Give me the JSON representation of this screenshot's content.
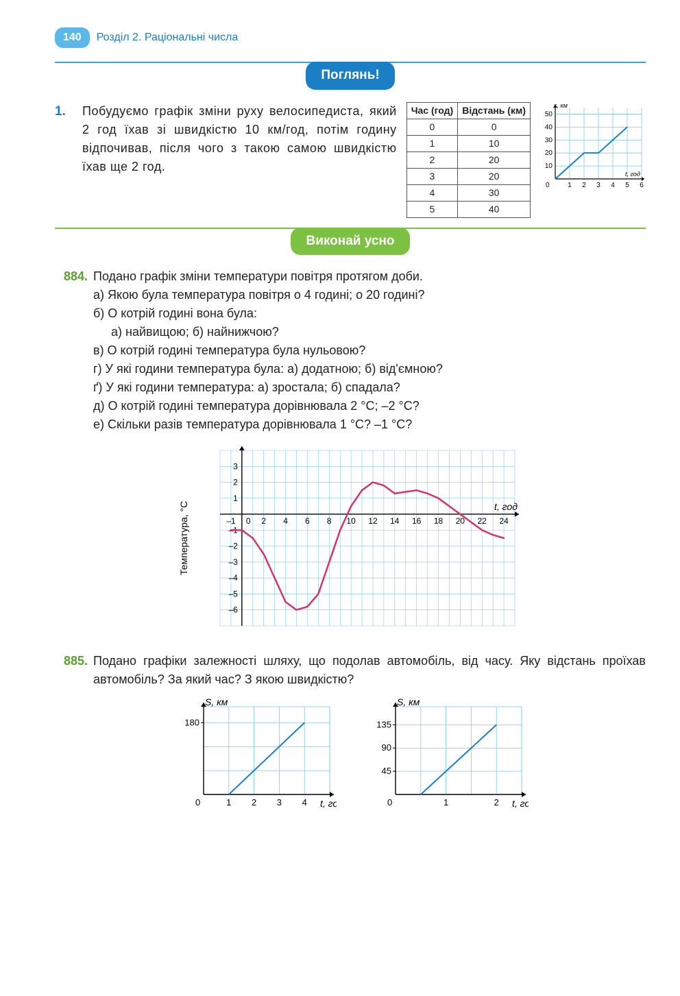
{
  "header": {
    "page_number": "140",
    "chapter": "Розділ 2. Раціональні числа"
  },
  "section_look": {
    "label": "Поглянь!"
  },
  "example1": {
    "num": "1.",
    "text": "Побудуємо графік зміни руху велосипедиста, який 2 год їхав зі швидкістю 10 км/год, потім годину відпочивав, після чого з такою самою швидкістю їхав ще 2 год.",
    "table": {
      "col1": "Час (год)",
      "col2": "Відстань (км)",
      "rows": [
        [
          "0",
          "0"
        ],
        [
          "1",
          "10"
        ],
        [
          "2",
          "20"
        ],
        [
          "3",
          "20"
        ],
        [
          "4",
          "30"
        ],
        [
          "5",
          "40"
        ]
      ]
    },
    "chart": {
      "type": "line",
      "ylabel": "s, км",
      "xlabel": "t, год",
      "yticks": [
        "10",
        "20",
        "30",
        "40",
        "50"
      ],
      "xticks": [
        "1",
        "2",
        "3",
        "4",
        "5",
        "6"
      ],
      "points": [
        [
          0,
          0
        ],
        [
          1,
          10
        ],
        [
          2,
          20
        ],
        [
          3,
          20
        ],
        [
          4,
          30
        ],
        [
          5,
          40
        ]
      ],
      "xlim": [
        0,
        6
      ],
      "ylim": [
        0,
        55
      ],
      "grid_color": "#7ec8e8",
      "line_color": "#1a7fc4",
      "line_width": 2,
      "bg": "#ffffff"
    }
  },
  "section_oral": {
    "label": "Виконай усно"
  },
  "p884": {
    "num": "884.",
    "intro": "Подано графік зміни температури повітря протягом доби.",
    "a": "а) Якою була температура повітря о 4 годині; о 20 годині?",
    "b": "б) О котрій годині вона була:",
    "b_sub": "а) найвищою; б) найнижчою?",
    "v": "в) О котрій годині температура була нульовою?",
    "g": "г) У які години температура була: а) додатною; б) від'ємною?",
    "gg": "ґ) У які години температура: а) зростала; б) спадала?",
    "d": "д) О котрій годині температура дорівнювала 2 °С; –2 °С?",
    "e": "е) Скільки разів температура дорівнювала 1 °С? –1 °С?",
    "chart": {
      "type": "line",
      "ylabel": "Температура, °С",
      "xlabel": "t, год",
      "xticks": [
        "–1",
        "0",
        "2",
        "4",
        "6",
        "8",
        "10",
        "12",
        "14",
        "16",
        "18",
        "20",
        "22",
        "24"
      ],
      "yticks_pos": [
        "1",
        "2",
        "3"
      ],
      "yticks_neg": [
        "–1",
        "–2",
        "–3",
        "–4",
        "–5",
        "–6"
      ],
      "points": [
        [
          -1,
          -1
        ],
        [
          0,
          -1
        ],
        [
          1,
          -1.5
        ],
        [
          2,
          -2.5
        ],
        [
          3,
          -4
        ],
        [
          4,
          -5.5
        ],
        [
          5,
          -6
        ],
        [
          6,
          -5.8
        ],
        [
          7,
          -5
        ],
        [
          8,
          -3
        ],
        [
          9,
          -1
        ],
        [
          10,
          0.5
        ],
        [
          11,
          1.5
        ],
        [
          12,
          2
        ],
        [
          13,
          1.8
        ],
        [
          14,
          1.3
        ],
        [
          15,
          1.4
        ],
        [
          16,
          1.5
        ],
        [
          17,
          1.3
        ],
        [
          18,
          1
        ],
        [
          19,
          0.5
        ],
        [
          20,
          0
        ],
        [
          21,
          -0.5
        ],
        [
          22,
          -1
        ],
        [
          23,
          -1.3
        ],
        [
          24,
          -1.5
        ]
      ],
      "xlim": [
        -2,
        25
      ],
      "ylim": [
        -7,
        4
      ],
      "grid_color": "#7ec8e8",
      "line_color": "#d6336c",
      "line_width": 2.5,
      "bg": "#ffffff"
    }
  },
  "p885": {
    "num": "885.",
    "text": "Подано графіки залежності шляху, що подолав автомобіль, від часу. Яку відстань проїхав автомобіль? За який час? З якою швидкістю?",
    "chart_a": {
      "type": "line",
      "ylabel": "S, км",
      "xlabel": "t, год",
      "xticks": [
        "1",
        "2",
        "3",
        "4"
      ],
      "yticks": [
        "180"
      ],
      "points": [
        [
          1,
          0
        ],
        [
          4,
          180
        ]
      ],
      "xlim": [
        0,
        5
      ],
      "ylim": [
        0,
        220
      ],
      "grid_color": "#7ec8e8",
      "line_color": "#1a7fc4",
      "line_width": 2,
      "bg": "#ffffff"
    },
    "chart_b": {
      "type": "line",
      "ylabel": "S, км",
      "xlabel": "t, год",
      "xticks": [
        "1",
        "2"
      ],
      "yticks": [
        "45",
        "90",
        "135"
      ],
      "points": [
        [
          0.5,
          0
        ],
        [
          2,
          135
        ]
      ],
      "xlim": [
        0,
        2.5
      ],
      "ylim": [
        0,
        170
      ],
      "grid_color": "#7ec8e8",
      "line_color": "#1a7fc4",
      "line_width": 2,
      "bg": "#ffffff"
    }
  }
}
